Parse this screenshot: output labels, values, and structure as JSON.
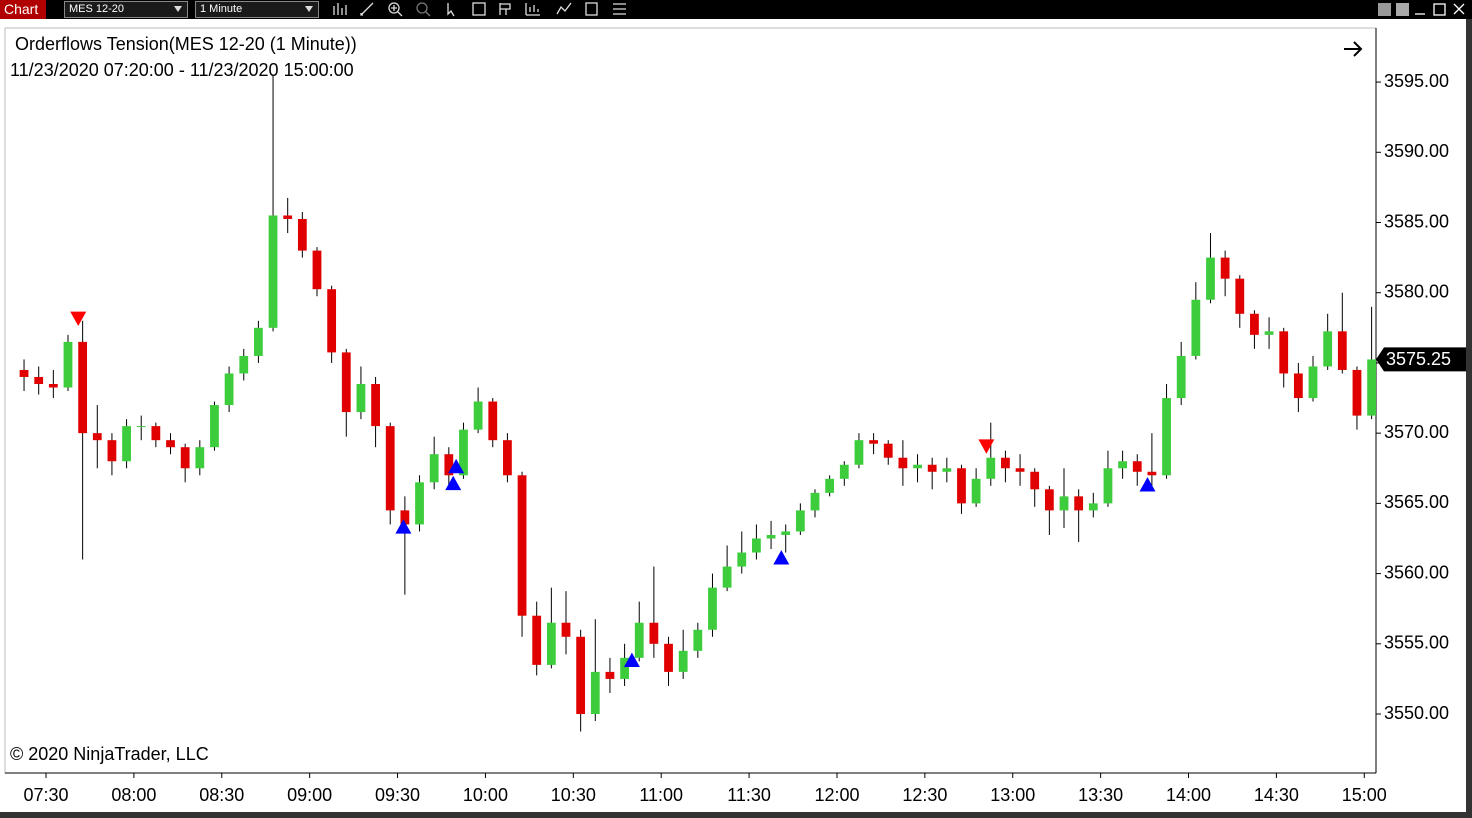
{
  "toolbar": {
    "label": "Chart",
    "instrument": "MES 12-20",
    "interval": "1 Minute"
  },
  "chart_data": {
    "type": "candlestick",
    "title": "Orderflows Tension(MES 12-20 (1 Minute))",
    "subtitle": "11/23/2020 07:20:00 - 11/23/2020 15:00:00",
    "watermark": "© 2020 NinjaTrader, LLC",
    "up_color": "#3ccc3c",
    "down_color": "#e00000",
    "wick_color": "#000000",
    "x": [
      "07:20",
      "07:25",
      "07:30",
      "07:35",
      "07:40",
      "07:45",
      "07:50",
      "07:55",
      "08:00",
      "08:05",
      "08:10",
      "08:15",
      "08:20",
      "08:25",
      "08:30",
      "08:35",
      "08:40",
      "08:45",
      "08:50",
      "08:55",
      "09:00",
      "09:05",
      "09:10",
      "09:15",
      "09:20",
      "09:25",
      "09:30",
      "09:35",
      "09:40",
      "09:45",
      "09:50",
      "09:55",
      "10:00",
      "10:05",
      "10:10",
      "10:15",
      "10:20",
      "10:25",
      "10:30",
      "10:35",
      "10:40",
      "10:45",
      "10:50",
      "10:55",
      "11:00",
      "11:05",
      "11:10",
      "11:15",
      "11:20",
      "11:25",
      "11:30",
      "11:35",
      "11:40",
      "11:45",
      "11:50",
      "11:55",
      "12:00",
      "12:05",
      "12:10",
      "12:15",
      "12:20",
      "12:25",
      "12:30",
      "12:35",
      "12:40",
      "12:45",
      "12:50",
      "12:55",
      "13:00",
      "13:05",
      "13:10",
      "13:15",
      "13:20",
      "13:25",
      "13:30",
      "13:35",
      "13:40",
      "13:45",
      "13:50",
      "13:55",
      "14:00",
      "14:05",
      "14:10",
      "14:15",
      "14:20",
      "14:25",
      "14:30",
      "14:35",
      "14:40",
      "14:45",
      "14:50",
      "14:55",
      "15:00"
    ],
    "open": [
      3574.5,
      3574,
      3573.5,
      3573.25,
      3576.5,
      3570,
      3569.5,
      3568,
      3570.5,
      3570.5,
      3569.5,
      3569,
      3567.5,
      3569,
      3572,
      3574.25,
      3575.5,
      3577.5,
      3585.5,
      3585.25,
      3583,
      3580.25,
      3575.75,
      3571.5,
      3573.5,
      3570.5,
      3564.5,
      3563.5,
      3566.5,
      3568.5,
      3567,
      3570.25,
      3572.25,
      3569.5,
      3567,
      3557,
      3553.5,
      3556.5,
      3555.5,
      3550,
      3553,
      3552.5,
      3554,
      3556.5,
      3555,
      3553,
      3554.5,
      3556,
      3559,
      3560.5,
      3561.5,
      3562.5,
      3562.75,
      3563,
      3564.5,
      3565.75,
      3566.75,
      3567.75,
      3569.5,
      3569.25,
      3568.25,
      3567.5,
      3567.75,
      3567.25,
      3567.5,
      3565,
      3566.75,
      3568.25,
      3567.5,
      3567.25,
      3566,
      3564.5,
      3565.5,
      3564.5,
      3565,
      3567.5,
      3568,
      3567.25,
      3567,
      3572.5,
      3575.5,
      3579.5,
      3582.5,
      3581,
      3578.5,
      3577,
      3577.25,
      3574.25,
      3572.5,
      3574.75,
      3577.25,
      3574.5,
      3571.25
    ],
    "high": [
      3575.25,
      3574.75,
      3574.5,
      3577,
      3578,
      3572,
      3570,
      3571,
      3571.25,
      3570.75,
      3570,
      3569.25,
      3569.5,
      3572.25,
      3574.75,
      3576,
      3578,
      3595.5,
      3586.75,
      3585.75,
      3583.25,
      3580.5,
      3576,
      3574.75,
      3574,
      3570.75,
      3565.5,
      3567,
      3569.75,
      3569,
      3570.75,
      3573.25,
      3572.5,
      3570,
      3567.25,
      3558,
      3559,
      3558.75,
      3556,
      3556.75,
      3554,
      3555,
      3558,
      3560.5,
      3555.5,
      3556,
      3556.5,
      3560,
      3562,
      3563,
      3563.5,
      3563.75,
      3563.5,
      3565,
      3566,
      3567,
      3568,
      3570,
      3570,
      3569.5,
      3569.5,
      3568.5,
      3568.25,
      3568.25,
      3567.75,
      3567.5,
      3570.75,
      3568.75,
      3568.5,
      3567.5,
      3566.25,
      3567.5,
      3566,
      3565.75,
      3568.75,
      3568.75,
      3568.5,
      3570,
      3573.5,
      3576.5,
      3580.75,
      3584.25,
      3583,
      3581.25,
      3578.75,
      3578.25,
      3577.5,
      3575,
      3575.5,
      3578.5,
      3580,
      3574.75,
      3579
    ],
    "low": [
      3573,
      3572.75,
      3572.5,
      3573,
      3561,
      3567.5,
      3567,
      3567.5,
      3569.5,
      3569,
      3568.5,
      3566.5,
      3567,
      3568.75,
      3571.5,
      3573.75,
      3575,
      3577.25,
      3584.25,
      3582.5,
      3579.75,
      3575,
      3569.75,
      3571,
      3569,
      3563.5,
      3558.5,
      3563,
      3566,
      3566,
      3566.75,
      3570,
      3569,
      3566.5,
      3555.5,
      3552.75,
      3553.25,
      3554.25,
      3548.75,
      3549.5,
      3551.5,
      3552,
      3553.75,
      3554,
      3552,
      3552.5,
      3554,
      3555.5,
      3558.75,
      3560,
      3561,
      3561.75,
      3561.5,
      3562.75,
      3564,
      3565.5,
      3566.25,
      3567.5,
      3568.5,
      3567.75,
      3566.25,
      3566.5,
      3566,
      3566.5,
      3564.25,
      3564.75,
      3566.25,
      3566.5,
      3566.25,
      3564.75,
      3562.75,
      3563.25,
      3562.25,
      3564,
      3564.75,
      3566.75,
      3566.25,
      3566,
      3566.75,
      3572,
      3575.25,
      3579.25,
      3579.75,
      3577.5,
      3576,
      3576,
      3573.25,
      3571.5,
      3572.25,
      3574.5,
      3574.25,
      3570.25,
      3571
    ],
    "close": [
      3574,
      3573.5,
      3573.25,
      3576.5,
      3570,
      3569.5,
      3568,
      3570.5,
      3570.5,
      3569.5,
      3569,
      3567.5,
      3569,
      3572,
      3574.25,
      3575.5,
      3577.5,
      3585.5,
      3585.25,
      3583,
      3580.25,
      3575.75,
      3571.5,
      3573.5,
      3570.5,
      3564.5,
      3563.5,
      3566.5,
      3568.5,
      3567,
      3570.25,
      3572.25,
      3569.5,
      3567,
      3557,
      3553.5,
      3556.5,
      3555.5,
      3550,
      3553,
      3552.5,
      3554,
      3556.5,
      3555,
      3553,
      3554.5,
      3556,
      3559,
      3560.5,
      3561.5,
      3562.5,
      3562.75,
      3563,
      3564.5,
      3565.75,
      3566.75,
      3567.75,
      3569.5,
      3569.25,
      3568.25,
      3567.5,
      3567.75,
      3567.25,
      3567.5,
      3565,
      3566.75,
      3568.25,
      3567.5,
      3567.25,
      3566,
      3564.5,
      3565.5,
      3564.5,
      3565,
      3567.5,
      3568,
      3567.25,
      3567,
      3572.5,
      3575.5,
      3579.5,
      3582.5,
      3581,
      3578.5,
      3577,
      3577.25,
      3574.25,
      3572.5,
      3574.75,
      3577.25,
      3574.5,
      3571.25,
      3575.25
    ],
    "signals": [
      {
        "marker": "triangle-up",
        "color": "#0000ff",
        "x": [
          "09:32",
          "09:49",
          "09:50",
          "10:50",
          "11:41",
          "13:46"
        ],
        "values": [
          3563.3,
          3566.4,
          3567.6,
          3553.8,
          3561.1,
          3566.3
        ]
      },
      {
        "marker": "triangle-down",
        "color": "#ff0000",
        "x": [
          "07:41",
          "12:51"
        ],
        "values": [
          3578.2,
          3569.1
        ]
      }
    ],
    "xlim": [
      "07:16",
      "15:04"
    ],
    "xticks": [
      "07:30",
      "08:00",
      "08:30",
      "09:00",
      "09:30",
      "10:00",
      "10:30",
      "11:00",
      "11:30",
      "12:00",
      "12:30",
      "13:00",
      "13:30",
      "14:00",
      "14:30",
      "15:00"
    ],
    "ylim": [
      3545.8,
      3598.85
    ],
    "yticks": [
      {
        "value": 3550,
        "label": "3550.00"
      },
      {
        "value": 3555,
        "label": "3555.00"
      },
      {
        "value": 3560,
        "label": "3560.00"
      },
      {
        "value": 3565,
        "label": "3565.00"
      },
      {
        "value": 3570,
        "label": "3570.00"
      },
      {
        "value": 3575,
        "label": "3575.00"
      },
      {
        "value": 3580,
        "label": "3580.00"
      },
      {
        "value": 3585,
        "label": "3585.00"
      },
      {
        "value": 3590,
        "label": "3590.00"
      },
      {
        "value": 3595,
        "label": "3595.00"
      }
    ],
    "grid": false
  }
}
